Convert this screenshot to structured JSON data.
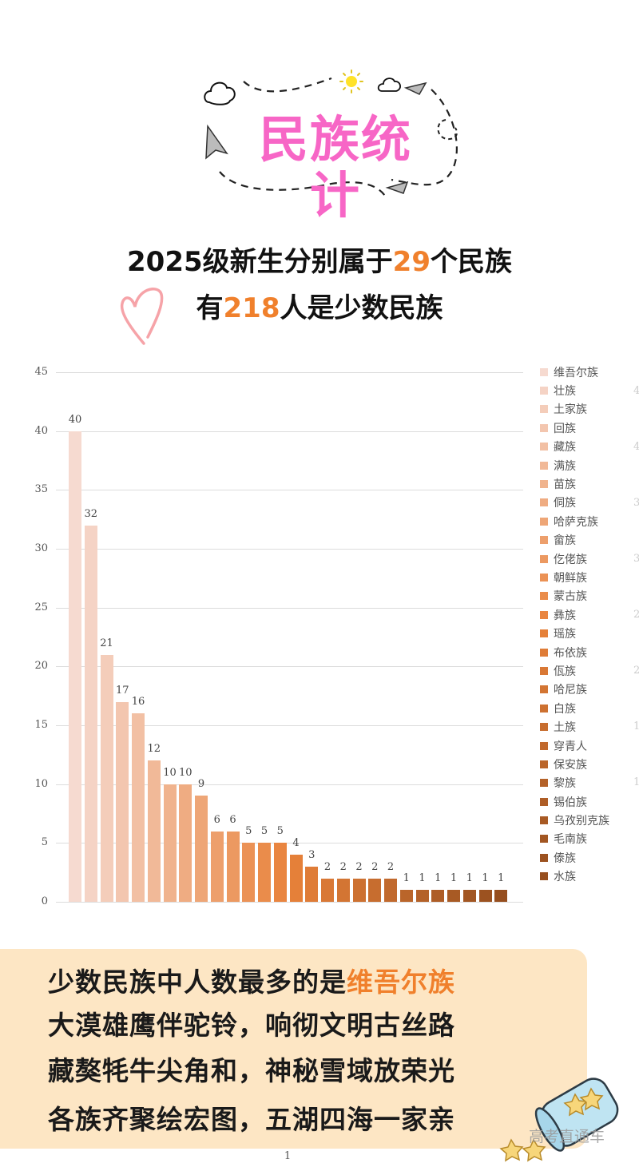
{
  "header": {
    "title": "民族统计",
    "headline_line1_prefix": "2025级新生分别属于",
    "headline_line1_number": "29",
    "headline_line1_suffix": "个民族",
    "headline_line2_prefix": "有",
    "headline_line2_number": "218",
    "headline_line2_suffix": "人是少数民族"
  },
  "colors": {
    "title_pink": "#f766c6",
    "highlight_orange": "#f0802c",
    "box_background": "#fde6c4",
    "bar_light": "#f6d6cc",
    "bar_mid": "#e8823a",
    "bar_dark": "#a0521f"
  },
  "chart_data": {
    "type": "bar",
    "title": "",
    "xlabel": "",
    "ylabel": "",
    "ylim": [
      0,
      45
    ],
    "yticks": [
      0,
      5,
      10,
      15,
      20,
      25,
      30,
      35,
      40,
      45
    ],
    "grid": true,
    "legend_position": "right",
    "x_category_label": "1",
    "series": [
      {
        "name": "维吾尔族",
        "values": [
          40
        ]
      },
      {
        "name": "壮族",
        "values": [
          32
        ]
      },
      {
        "name": "土家族",
        "values": [
          21
        ]
      },
      {
        "name": "回族",
        "values": [
          17
        ]
      },
      {
        "name": "藏族",
        "values": [
          16
        ]
      },
      {
        "name": "满族",
        "values": [
          12
        ]
      },
      {
        "name": "苗族",
        "values": [
          10
        ]
      },
      {
        "name": "侗族",
        "values": [
          10
        ]
      },
      {
        "name": "哈萨克族",
        "values": [
          9
        ]
      },
      {
        "name": "畲族",
        "values": [
          6
        ]
      },
      {
        "name": "仡佬族",
        "values": [
          6
        ]
      },
      {
        "name": "朝鲜族",
        "values": [
          5
        ]
      },
      {
        "name": "蒙古族",
        "values": [
          5
        ]
      },
      {
        "name": "彝族",
        "values": [
          5
        ]
      },
      {
        "name": "瑶族",
        "values": [
          4
        ]
      },
      {
        "name": "布依族",
        "values": [
          3
        ]
      },
      {
        "name": "佤族",
        "values": [
          2
        ]
      },
      {
        "name": "哈尼族",
        "values": [
          2
        ]
      },
      {
        "name": "白族",
        "values": [
          2
        ]
      },
      {
        "name": "土族",
        "values": [
          2
        ]
      },
      {
        "name": "穿青人",
        "values": [
          2
        ]
      },
      {
        "name": "保安族",
        "values": [
          1
        ]
      },
      {
        "name": "黎族",
        "values": [
          1
        ]
      },
      {
        "name": "锡伯族",
        "values": [
          1
        ]
      },
      {
        "name": "乌孜别克族",
        "values": [
          1
        ]
      },
      {
        "name": "毛南族",
        "values": [
          1
        ]
      },
      {
        "name": "傣族",
        "values": [
          1
        ]
      },
      {
        "name": "水族",
        "values": [
          1
        ]
      }
    ],
    "bar_values_in_order": [
      40,
      32,
      21,
      17,
      16,
      12,
      10,
      10,
      9,
      6,
      6,
      5,
      5,
      5,
      4,
      3,
      2,
      2,
      2,
      2,
      2,
      1,
      1,
      1,
      1,
      1,
      1,
      1
    ],
    "legend": [
      "维吾尔族",
      "壮族",
      "土家族",
      "回族",
      "藏族",
      "满族",
      "苗族",
      "侗族",
      "哈萨克族",
      "畲族",
      "仡佬族",
      "朝鲜族",
      "蒙古族",
      "彝族",
      "瑶族",
      "布依族",
      "佤族",
      "哈尼族",
      "白族",
      "土族",
      "穿青人",
      "保安族",
      "黎族",
      "锡伯族",
      "乌孜别克族",
      "毛南族",
      "傣族",
      "水族"
    ]
  },
  "poem": {
    "line1_prefix": "少数民族中人数最多的是",
    "line1_highlight": "维吾尔族",
    "line2": "大漠雄鹰伴驼铃，响彻文明古丝路",
    "line3": "藏獒牦牛尖角和，神秘雪域放荣光",
    "line4": "各族齐聚绘宏图，五湖四海一家亲"
  },
  "watermark": "高考直通车"
}
